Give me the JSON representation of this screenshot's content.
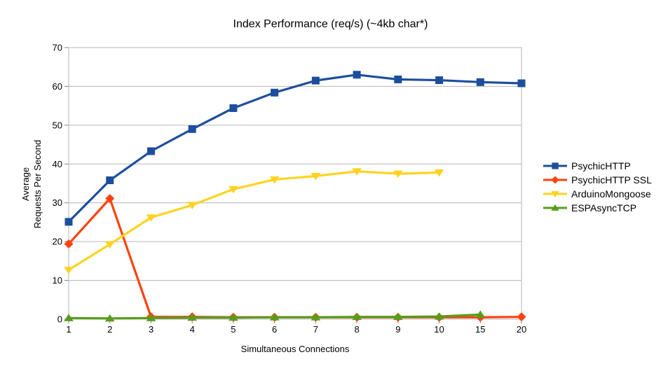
{
  "chart_data": {
    "type": "line",
    "title": "Index Performance (req/s) (~4kb char*)",
    "xlabel": "Simultaneous Connections",
    "ylabel": "Average\nRequests Per Second",
    "categories": [
      "1",
      "2",
      "3",
      "4",
      "5",
      "6",
      "7",
      "8",
      "9",
      "10",
      "15",
      "20"
    ],
    "ylim": [
      0,
      70
    ],
    "yticks": [
      0,
      10,
      20,
      30,
      40,
      50,
      60,
      70
    ],
    "grid": "horizontal-only",
    "legend_position": "right",
    "colors": {
      "grid": "#b6b6b6",
      "frame": "#b6b6b6",
      "tick": "#808080",
      "text": "#000000"
    },
    "series": [
      {
        "name": "PsychicHTTP",
        "marker": "square",
        "color": "#1c4e9d",
        "values": [
          25.1,
          35.8,
          43.3,
          49.0,
          54.4,
          58.4,
          61.5,
          63.0,
          61.8,
          61.6,
          61.1,
          60.8
        ]
      },
      {
        "name": "PsychicHTTP SSL",
        "marker": "diamond",
        "color": "#ff420e",
        "values": [
          19.4,
          31.1,
          0.6,
          0.6,
          0.5,
          0.5,
          0.5,
          0.5,
          0.5,
          0.5,
          0.5,
          0.6
        ]
      },
      {
        "name": "ArduinoMongoose",
        "marker": "triangle-down",
        "color": "#ffd320",
        "values": [
          12.7,
          19.3,
          26.2,
          29.4,
          33.5,
          36.0,
          36.9,
          38.1,
          37.5,
          37.8
        ]
      },
      {
        "name": "ESPAsyncTCP",
        "marker": "triangle-up",
        "color": "#579d1c",
        "values": [
          0.3,
          0.2,
          0.3,
          0.4,
          0.4,
          0.5,
          0.5,
          0.6,
          0.6,
          0.7,
          1.2
        ]
      }
    ]
  }
}
